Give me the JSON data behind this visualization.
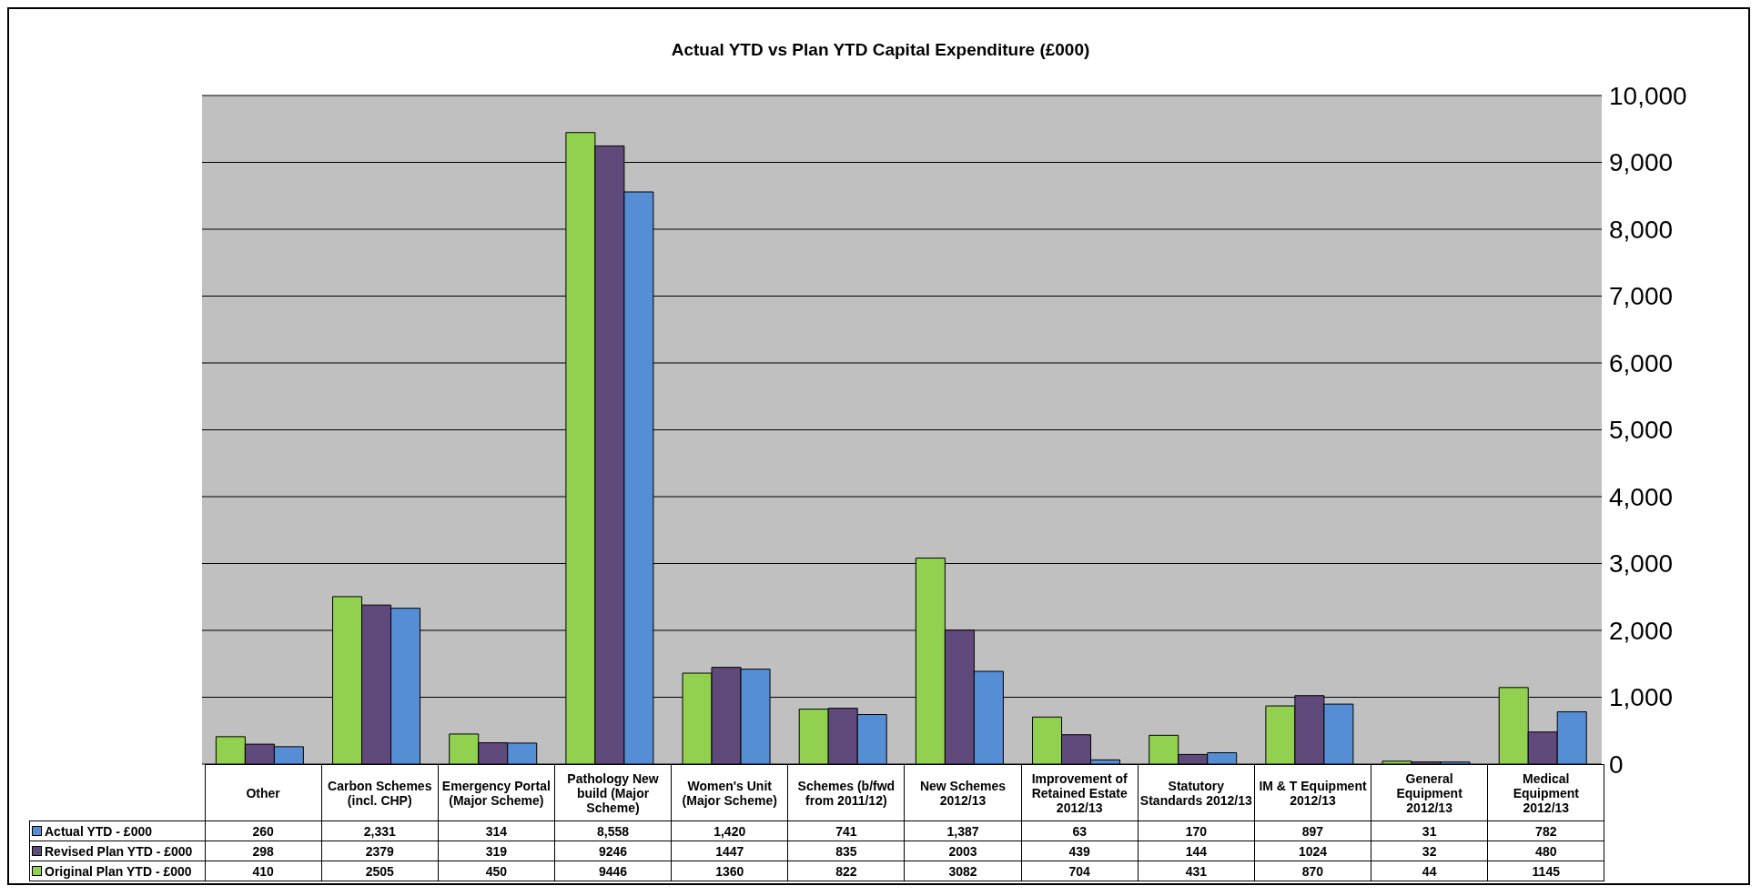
{
  "chart_data": {
    "type": "bar",
    "title": "Actual YTD vs Plan YTD Capital Expenditure (£000)",
    "categories": [
      "Other",
      "Carbon Schemes (incl. CHP)",
      "Emergency Portal (Major Scheme)",
      "Pathology New build (Major Scheme)",
      "Women's Unit (Major Scheme)",
      "Schemes (b/fwd from 2011/12)",
      "New Schemes 2012/13",
      "Improvement of Retained Estate 2012/13",
      "Statutory Standards 2012/13",
      "IM & T Equipment 2012/13",
      "General Equipment 2012/13",
      "Medical Equipment 2012/13"
    ],
    "series": [
      {
        "name": "Original Plan YTD - £000",
        "color": "#92d050",
        "values": [
          410,
          2505,
          450,
          9446,
          1360,
          822,
          3082,
          704,
          431,
          870,
          44,
          1145
        ],
        "value_labels": [
          "410",
          "2505",
          "450",
          "9446",
          "1360",
          "822",
          "3082",
          "704",
          "431",
          "870",
          "44",
          "1145"
        ]
      },
      {
        "name": "Revised Plan YTD - £000",
        "color": "#604a7b",
        "values": [
          298,
          2379,
          319,
          9246,
          1447,
          835,
          2003,
          439,
          144,
          1024,
          32,
          480
        ],
        "value_labels": [
          "298",
          "2379",
          "319",
          "9246",
          "1447",
          "835",
          "2003",
          "439",
          "144",
          "1024",
          "32",
          "480"
        ]
      },
      {
        "name": "Actual YTD - £000",
        "color": "#558ed5",
        "values": [
          260,
          2331,
          314,
          8558,
          1420,
          741,
          1387,
          63,
          170,
          897,
          31,
          782
        ],
        "value_labels": [
          "260",
          "2,331",
          "314",
          "8,558",
          "1,420",
          "741",
          "1,387",
          "63",
          "170",
          "897",
          "31",
          "782"
        ]
      }
    ],
    "ylim": [
      0,
      10000
    ],
    "yticks": [
      0,
      {
        "value": 1000,
        "label": "1,000"
      },
      {
        "value": 2000,
        "label": "2,000"
      },
      {
        "value": 3000,
        "label": "3,000"
      },
      {
        "value": 4000,
        "label": "4,000"
      },
      {
        "value": 5000,
        "label": "5,000"
      },
      {
        "value": 6000,
        "label": "6,000"
      },
      {
        "value": 7000,
        "label": "7,000"
      },
      {
        "value": 8000,
        "label": "8,000"
      },
      {
        "value": 9000,
        "label": "9,000"
      },
      {
        "value": 10000,
        "label": "10,000"
      }
    ],
    "grid": "y",
    "legend": "bottom"
  }
}
